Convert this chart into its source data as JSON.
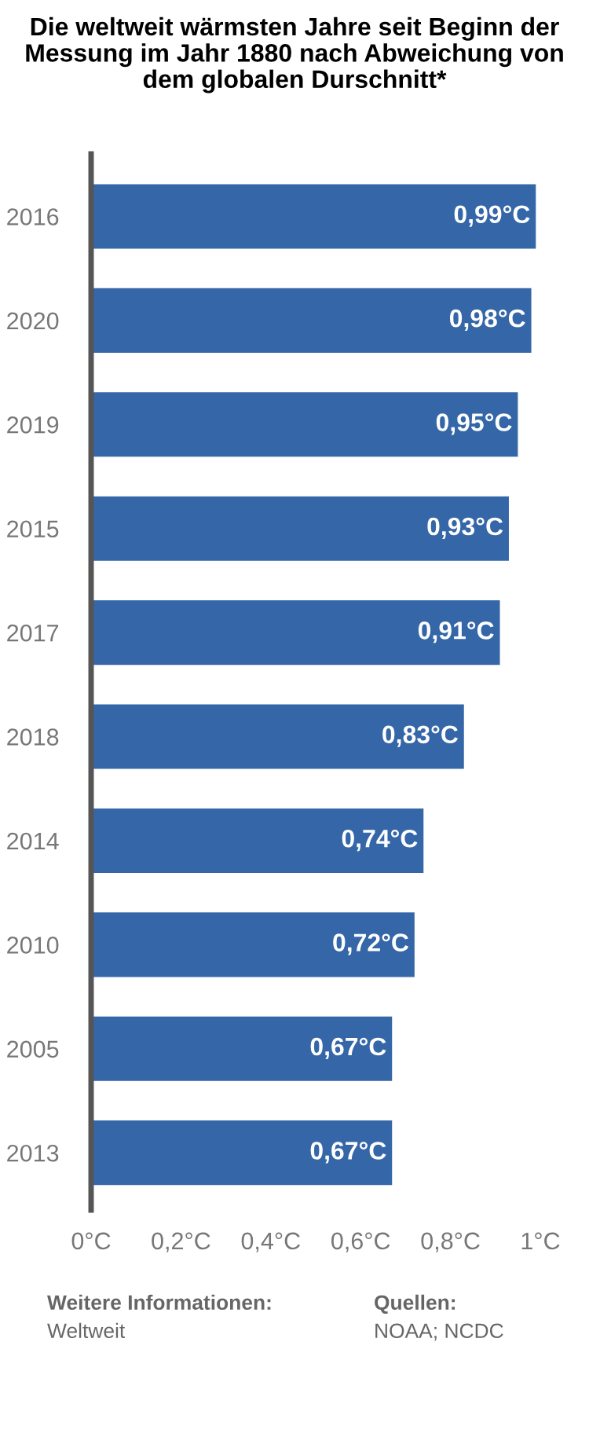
{
  "chart_data": {
    "type": "bar",
    "orientation": "horizontal",
    "title": "Die weltweit wärmsten Jahre seit Beginn der Messung im Jahr 1880 nach Abweichung von dem globalen Durschnitt*",
    "categories": [
      "2016",
      "2020",
      "2019",
      "2015",
      "2017",
      "2018",
      "2014",
      "2010",
      "2005",
      "2013"
    ],
    "values": [
      0.99,
      0.98,
      0.95,
      0.93,
      0.91,
      0.83,
      0.74,
      0.72,
      0.67,
      0.67
    ],
    "value_labels": [
      "0,99°C",
      "0,98°C",
      "0,95°C",
      "0,93°C",
      "0,91°C",
      "0,83°C",
      "0,74°C",
      "0,72°C",
      "0,67°C",
      "0,67°C"
    ],
    "color": "#3567a8",
    "xlim": [
      0,
      1
    ],
    "xticks": [
      {
        "value": 0,
        "label": "0°C"
      },
      {
        "value": 0.2,
        "label": "0,2°C"
      },
      {
        "value": 0.4,
        "label": "0,4°C"
      },
      {
        "value": 0.6,
        "label": "0,6°C"
      },
      {
        "value": 0.8,
        "label": "0,8°C"
      },
      {
        "value": 1,
        "label": "1°C"
      }
    ],
    "grid": false,
    "annotations": [
      "Weitere Informationen:",
      "Weltweit",
      "Quellen:",
      "NOAA; NCDC"
    ]
  }
}
